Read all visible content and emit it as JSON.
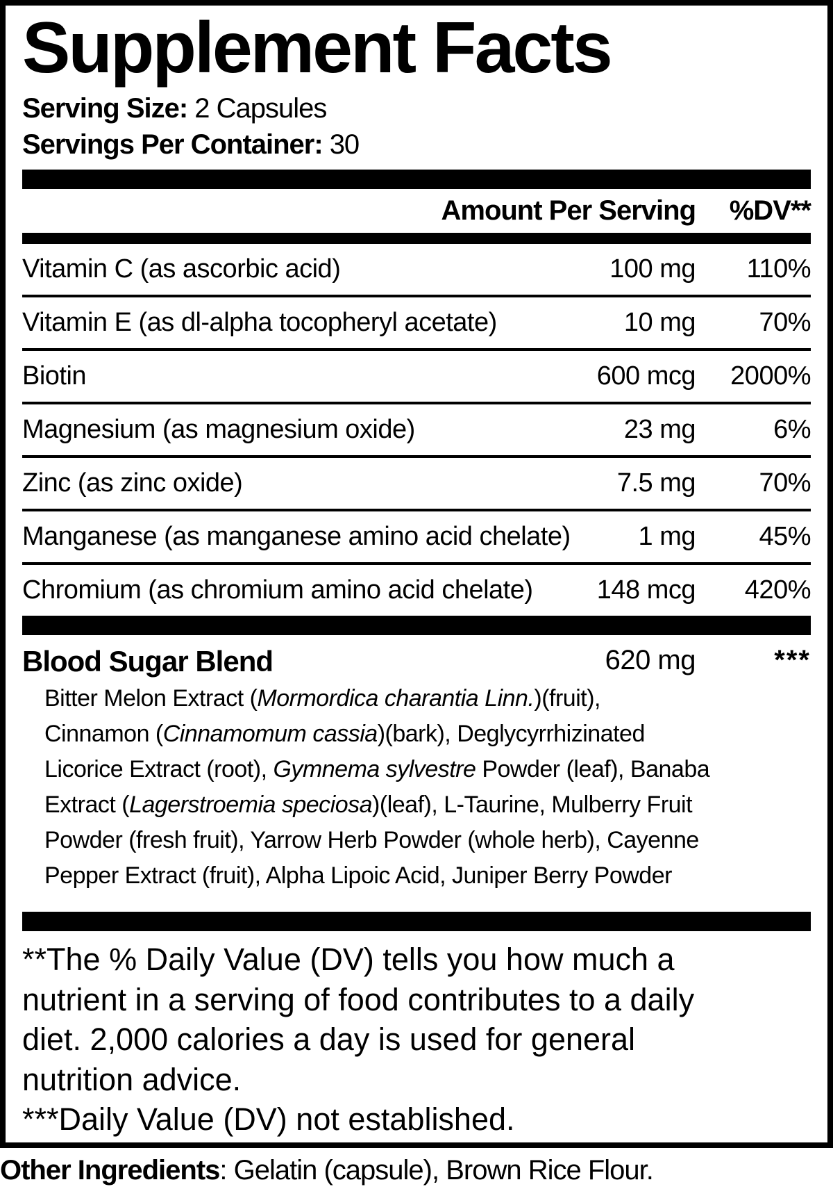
{
  "panel": {
    "title": "Supplement Facts",
    "serving": {
      "size_label": "Serving Size:",
      "size_value": "2 Capsules",
      "container_label": "Servings Per Container:",
      "container_value": "30"
    },
    "columns": {
      "amount": "Amount Per Serving",
      "dv": "%DV**"
    },
    "nutrients": [
      {
        "name": "Vitamin C (as ascorbic acid)",
        "amount": "100 mg",
        "dv": "110%"
      },
      {
        "name": "Vitamin E (as dl-alpha tocopheryl acetate)",
        "amount": "10 mg",
        "dv": "70%"
      },
      {
        "name": "Biotin",
        "amount": "600 mcg",
        "dv": "2000%"
      },
      {
        "name": "Magnesium (as magnesium oxide)",
        "amount": "23 mg",
        "dv": "6%"
      },
      {
        "name": "Zinc (as zinc oxide)",
        "amount": "7.5 mg",
        "dv": "70%"
      },
      {
        "name": "Manganese (as manganese amino acid chelate)",
        "amount": "1 mg",
        "dv": "45%"
      },
      {
        "name": "Chromium (as chromium amino acid chelate)",
        "amount": "148 mcg",
        "dv": "420%"
      }
    ],
    "blend": {
      "name": "Blood Sugar Blend",
      "amount": "620 mg",
      "dv": "***",
      "description_lines": [
        [
          {
            "t": "Bitter Melon Extract ("
          },
          {
            "t": "Mormordica charantia Linn.",
            "italic": true
          },
          {
            "t": ")(fruit),"
          }
        ],
        [
          {
            "t": "Cinnamon ("
          },
          {
            "t": "Cinnamomum cassia",
            "italic": true
          },
          {
            "t": ")(bark), Deglycyrrhizinated"
          }
        ],
        [
          {
            "t": "Licorice Extract (root), "
          },
          {
            "t": "Gymnema sylvestre",
            "italic": true
          },
          {
            "t": " Powder (leaf), Banaba"
          }
        ],
        [
          {
            "t": "Extract ("
          },
          {
            "t": "Lagerstroemia speciosa",
            "italic": true
          },
          {
            "t": ")(leaf), L-Taurine, Mulberry Fruit"
          }
        ],
        [
          {
            "t": "Powder (fresh fruit), Yarrow Herb Powder (whole herb), Cayenne"
          }
        ],
        [
          {
            "t": "Pepper Extract (fruit), Alpha Lipoic Acid, Juniper Berry Powder"
          }
        ]
      ]
    },
    "footnote_lines": [
      "**The % Daily Value (DV) tells you how much a",
      "nutrient in a serving of food contributes to a daily",
      "diet. 2,000 calories a day is used for general",
      "nutrition advice.",
      "***Daily Value (DV) not established."
    ],
    "other_ingredients": {
      "label": "Other Ingredients",
      "value": ": Gelatin (capsule), Brown Rice Flour."
    },
    "colors": {
      "ink": "#000000",
      "paper": "#ffffff"
    }
  }
}
